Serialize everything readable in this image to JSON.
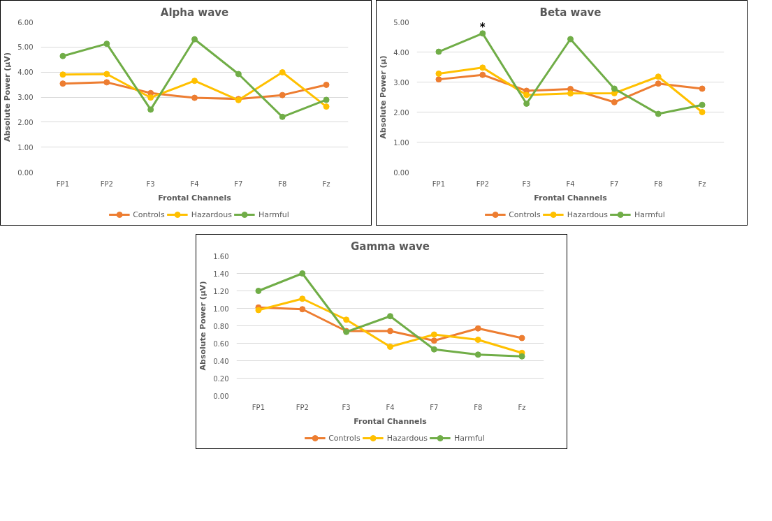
{
  "chart_data": [
    {
      "type": "line",
      "title": "Alpha wave",
      "xlabel": "Frontal Channels",
      "ylabel": "Absolute Power (µV)",
      "categories": [
        "FP1",
        "FP2",
        "F3",
        "F4",
        "F7",
        "F8",
        "Fz"
      ],
      "ylim": [
        0,
        6
      ],
      "yticks": [
        {
          "value": 0,
          "label": "0.00"
        },
        {
          "value": 1,
          "label": "1.00"
        },
        {
          "value": 2,
          "label": "2.00"
        },
        {
          "value": 3,
          "label": "3.00"
        },
        {
          "value": 4,
          "label": "4.00"
        },
        {
          "value": 5,
          "label": "5.00"
        },
        {
          "value": 6,
          "label": "6.00"
        }
      ],
      "grid": "y",
      "legend": "bottom",
      "marker": "circle",
      "line_style": "solid",
      "series": [
        {
          "name": "Controls",
          "color": "#ed7d31",
          "values": [
            3.54,
            3.59,
            3.16,
            2.97,
            2.92,
            3.08,
            3.49
          ]
        },
        {
          "name": "Hazardous",
          "color": "#ffc000",
          "values": [
            3.9,
            3.92,
            2.98,
            3.65,
            2.88,
            3.99,
            2.62
          ]
        },
        {
          "name": "Harmful",
          "color": "#70ad47",
          "values": [
            4.64,
            5.13,
            2.5,
            5.31,
            3.92,
            2.21,
            2.89
          ]
        }
      ]
    },
    {
      "type": "line",
      "title": "Beta wave",
      "xlabel": "Frontal Channels",
      "ylabel": "Absolute Power (µ)",
      "categories": [
        "FP1",
        "FP2",
        "F3",
        "F4",
        "F7",
        "F8",
        "Fz"
      ],
      "ylim": [
        0,
        5
      ],
      "yticks": [
        {
          "value": 0,
          "label": "0.00"
        },
        {
          "value": 1,
          "label": "1.00"
        },
        {
          "value": 2,
          "label": "2.00"
        },
        {
          "value": 3,
          "label": "3.00"
        },
        {
          "value": 4,
          "label": "4.00"
        },
        {
          "value": 5,
          "label": "5.00"
        }
      ],
      "grid": "y",
      "legend": "bottom",
      "marker": "circle",
      "line_style": "solid",
      "annotations": [
        {
          "text": "*",
          "x": "FP2",
          "y": 4.62
        }
      ],
      "series": [
        {
          "name": "Controls",
          "color": "#ed7d31",
          "values": [
            3.09,
            3.24,
            2.71,
            2.77,
            2.33,
            2.95,
            2.78
          ]
        },
        {
          "name": "Hazardous",
          "color": "#ffc000",
          "values": [
            3.28,
            3.48,
            2.57,
            2.62,
            2.63,
            3.18,
            2.0
          ]
        },
        {
          "name": "Harmful",
          "color": "#70ad47",
          "values": [
            4.01,
            4.62,
            2.28,
            4.43,
            2.78,
            1.94,
            2.24
          ]
        }
      ]
    },
    {
      "type": "line",
      "title": "Gamma wave",
      "xlabel": "Frontal Channels",
      "ylabel": "Absolute Power (µV)",
      "categories": [
        "FP1",
        "FP2",
        "F3",
        "F4",
        "F7",
        "F8",
        "Fz"
      ],
      "ylim": [
        0,
        1.6
      ],
      "yticks": [
        {
          "value": 0,
          "label": "0.00"
        },
        {
          "value": 0.2,
          "label": "0.20"
        },
        {
          "value": 0.4,
          "label": "0.40"
        },
        {
          "value": 0.6,
          "label": "0.60"
        },
        {
          "value": 0.8,
          "label": "0.80"
        },
        {
          "value": 1.0,
          "label": "1.00"
        },
        {
          "value": 1.2,
          "label": "1.20"
        },
        {
          "value": 1.4,
          "label": "1.40"
        },
        {
          "value": 1.6,
          "label": "1.60"
        }
      ],
      "grid": "y",
      "legend": "bottom",
      "marker": "circle",
      "line_style": "solid",
      "series": [
        {
          "name": "Controls",
          "color": "#ed7d31",
          "values": [
            1.01,
            0.99,
            0.74,
            0.74,
            0.63,
            0.77,
            0.66
          ]
        },
        {
          "name": "Hazardous",
          "color": "#ffc000",
          "values": [
            0.98,
            1.11,
            0.87,
            0.56,
            0.7,
            0.64,
            0.49
          ]
        },
        {
          "name": "Harmful",
          "color": "#70ad47",
          "values": [
            1.2,
            1.4,
            0.73,
            0.91,
            0.53,
            0.47,
            0.45
          ]
        }
      ]
    }
  ]
}
